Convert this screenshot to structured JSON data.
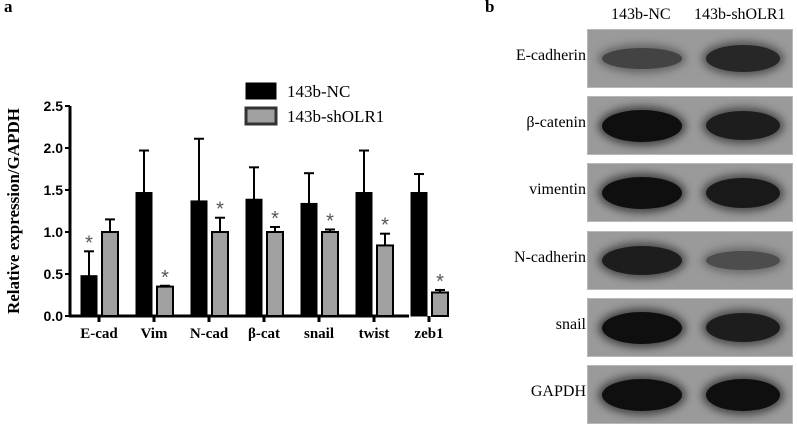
{
  "panels": {
    "a_label": "a",
    "b_label": "b"
  },
  "chart_data": {
    "type": "bar",
    "title": "",
    "xlabel": "",
    "ylabel": "Relative expression/GAPDH",
    "ylim": [
      0,
      2.5
    ],
    "yticks": [
      "0.0",
      "0.5",
      "1.0",
      "1.5",
      "2.0",
      "2.5"
    ],
    "categories": [
      "E-cad",
      "Vim",
      "N-cad",
      "β-cat",
      "snail",
      "twist",
      "zeb1"
    ],
    "series": [
      {
        "name": "143b-NC",
        "color": "#000000",
        "values": [
          0.48,
          1.47,
          1.37,
          1.39,
          1.34,
          1.47,
          1.47
        ],
        "error_upper": [
          0.77,
          1.97,
          2.11,
          1.77,
          1.7,
          1.97,
          1.69
        ]
      },
      {
        "name": "143b-shOLR1",
        "color": "#a0a0a0",
        "values": [
          1.0,
          0.35,
          1.0,
          1.0,
          1.0,
          0.84,
          0.28
        ],
        "error_upper": [
          1.15,
          0.36,
          1.17,
          1.06,
          1.03,
          0.98,
          0.31
        ]
      }
    ],
    "significance": [
      {
        "category": "E-cad",
        "series": "143b-NC",
        "mark": "*"
      },
      {
        "category": "Vim",
        "series": "143b-shOLR1",
        "mark": "*"
      },
      {
        "category": "N-cad",
        "series": "143b-shOLR1",
        "mark": "*"
      },
      {
        "category": "β-cat",
        "series": "143b-shOLR1",
        "mark": "*"
      },
      {
        "category": "snail",
        "series": "143b-shOLR1",
        "mark": "*"
      },
      {
        "category": "twist",
        "series": "143b-shOLR1",
        "mark": "*"
      },
      {
        "category": "zeb1",
        "series": "143b-shOLR1",
        "mark": "*"
      }
    ],
    "grid": false,
    "legend_position": "top-right",
    "legend": [
      "143b-NC",
      "143b-shOLR1"
    ]
  },
  "western_blot": {
    "lanes": [
      "143b-NC",
      "143b-shOLR1"
    ],
    "rows": [
      {
        "label": "E-cadherin",
        "nc_intensity": 0.45,
        "sh_intensity": 0.75
      },
      {
        "label": "β-catenin",
        "nc_intensity": 1.0,
        "sh_intensity": 0.85
      },
      {
        "label": "vimentin",
        "nc_intensity": 1.0,
        "sh_intensity": 0.9
      },
      {
        "label": "N-cadherin",
        "nc_intensity": 0.85,
        "sh_intensity": 0.35
      },
      {
        "label": "snail",
        "nc_intensity": 1.0,
        "sh_intensity": 0.85
      },
      {
        "label": "GAPDH",
        "nc_intensity": 1.0,
        "sh_intensity": 1.0
      }
    ]
  }
}
